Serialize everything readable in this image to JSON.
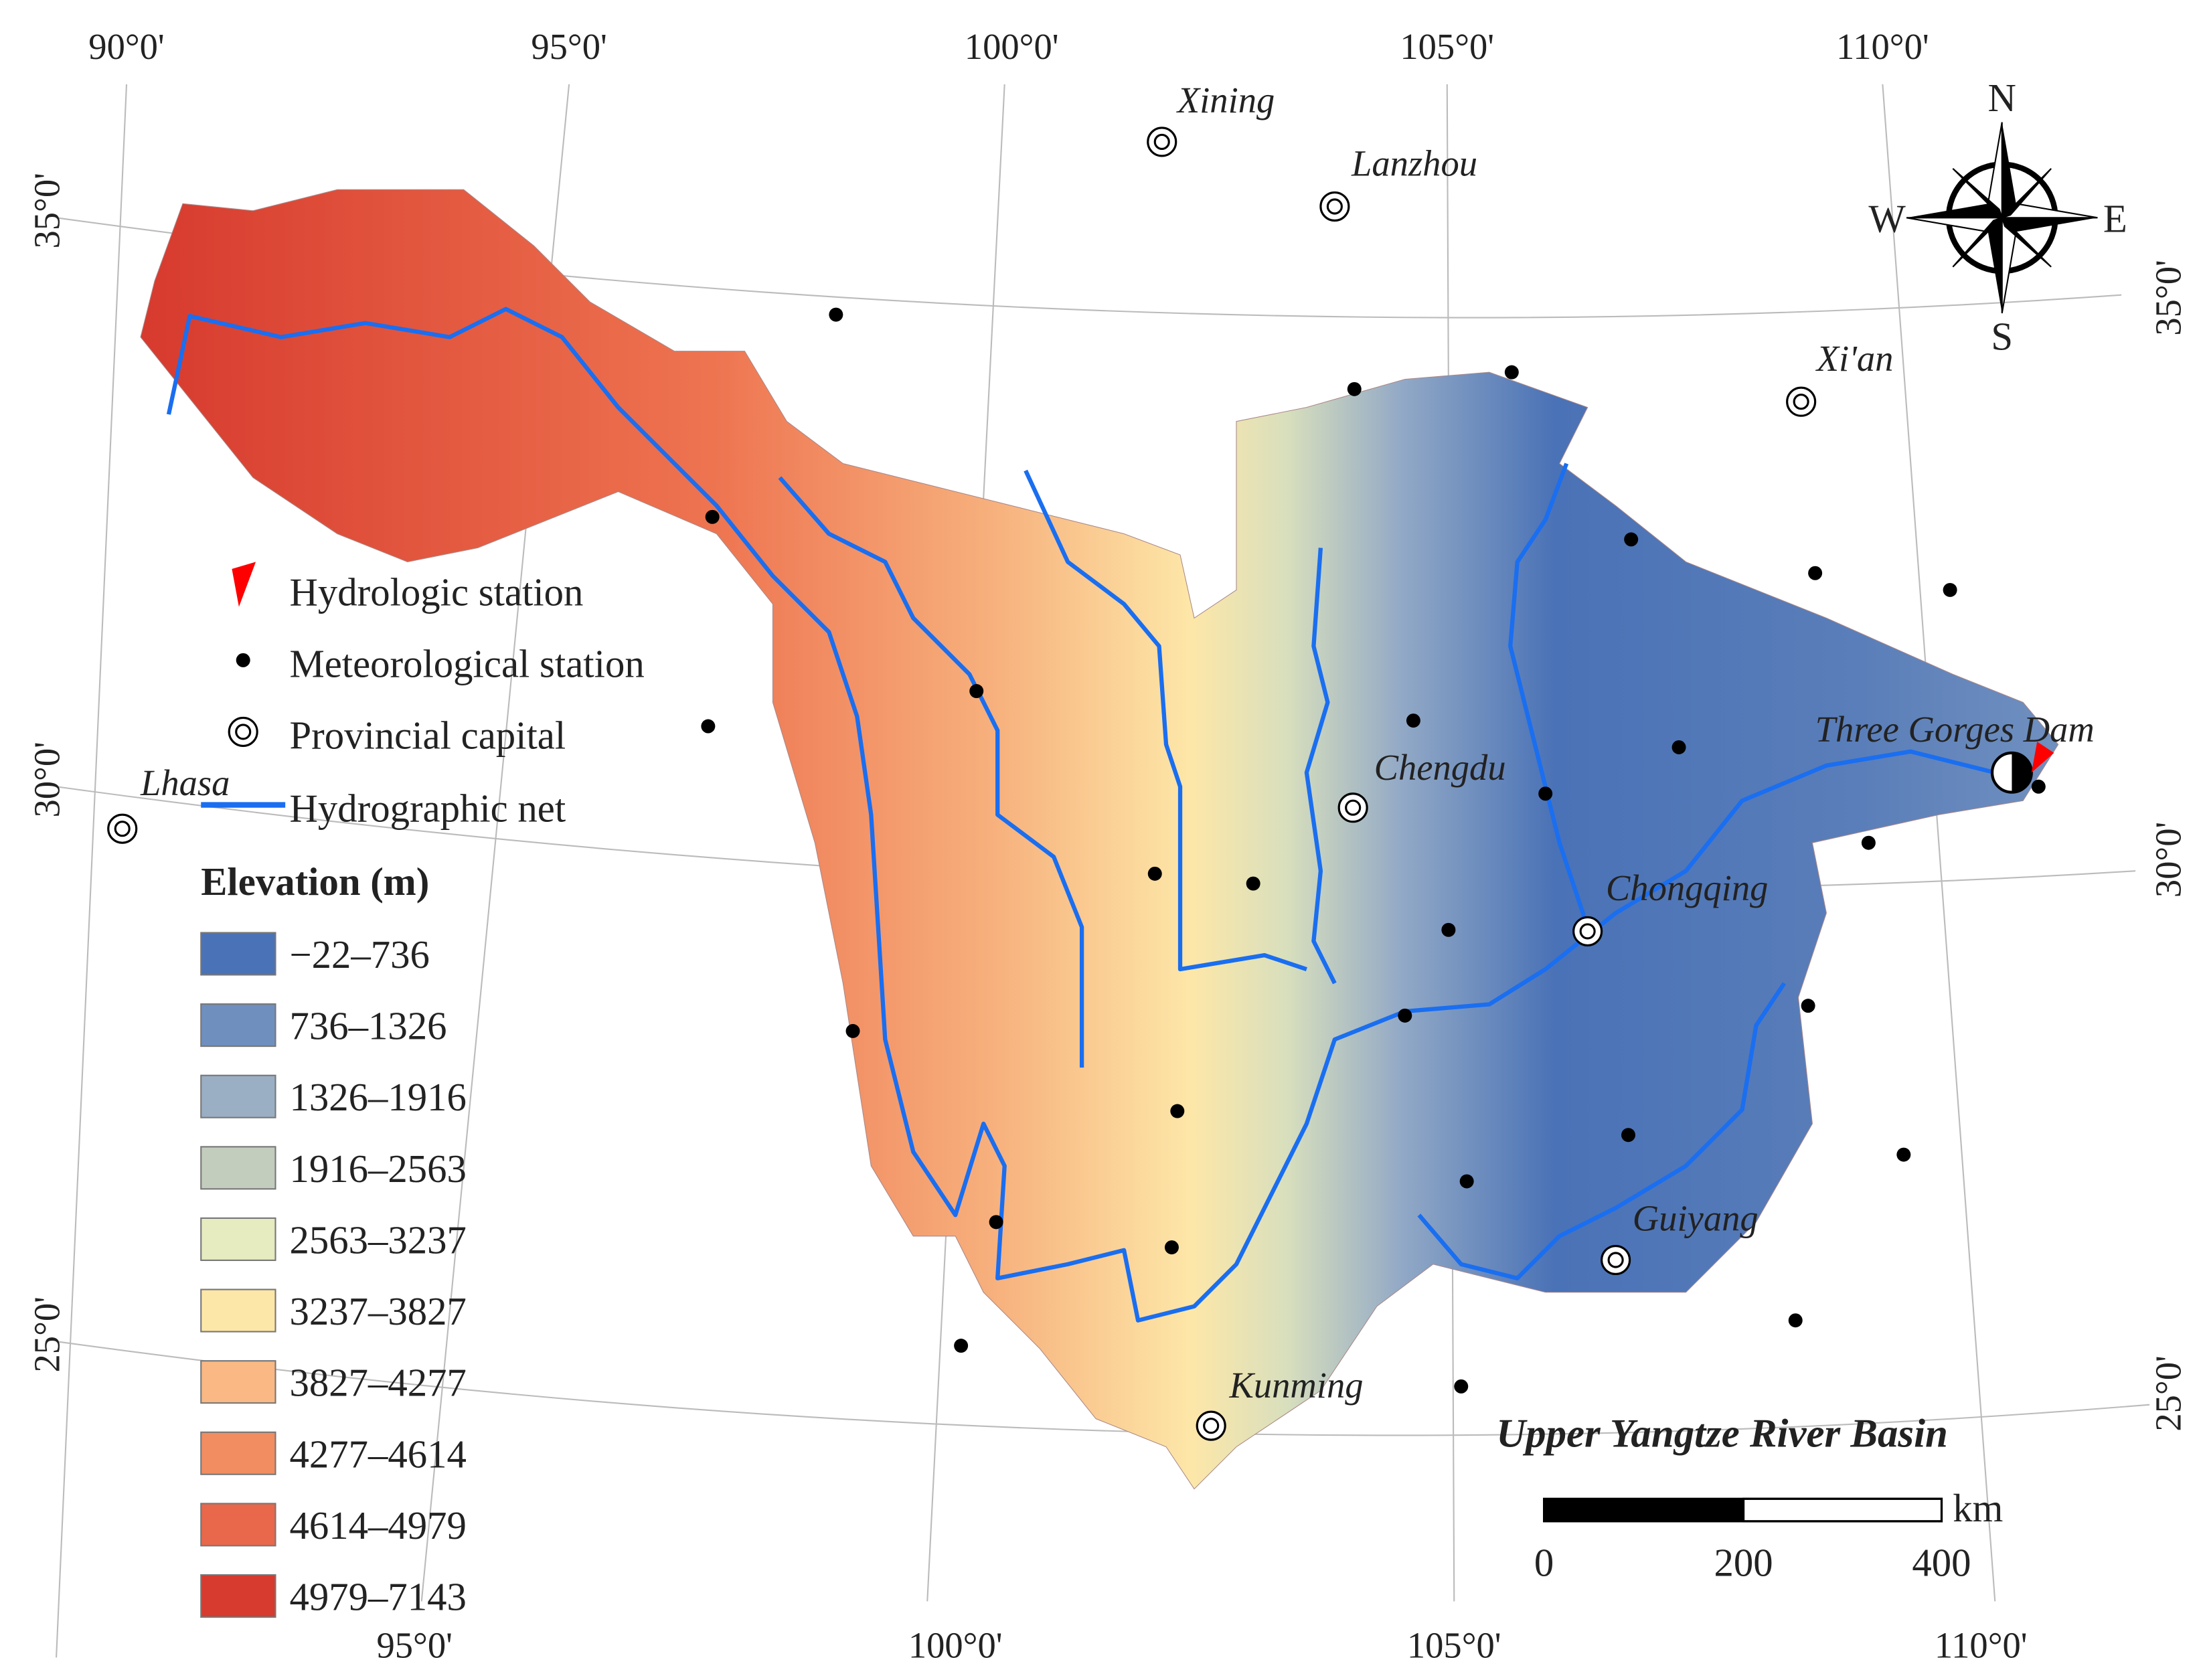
{
  "graticule": {
    "top": [
      "90°0'",
      "95°0'",
      "100°0'",
      "105°0'",
      "110°0'"
    ],
    "bottom": [
      "95°0'",
      "100°0'",
      "105°0'",
      "110°0'"
    ],
    "left": [
      "35°0'",
      "30°0'",
      "25°0'"
    ],
    "right": [
      "35°0'",
      "30°0'",
      "25°0'"
    ]
  },
  "compass": {
    "north": "N",
    "south": "S",
    "east": "E",
    "west": "W"
  },
  "cities": [
    "Xining",
    "Lanzhou",
    "Xi'an",
    "Lhasa",
    "Chengdu",
    "Chongqing",
    "Guiyang",
    "Kunming"
  ],
  "dam": "Three Gorges Dam",
  "legend": {
    "items": [
      "Hydrologic station",
      "Meteorological station",
      "Provincial capital",
      "Hydrographic net"
    ],
    "elevation_title": "Elevation (m)",
    "elevation_classes": [
      {
        "label": "−22–736",
        "color": "#4a72b6"
      },
      {
        "label": "736–1326",
        "color": "#6f8fbf"
      },
      {
        "label": "1326–1916",
        "color": "#9aafc4"
      },
      {
        "label": "1916–2563",
        "color": "#c2cdbd"
      },
      {
        "label": "2563–3237",
        "color": "#e6ebc0"
      },
      {
        "label": "3237–3827",
        "color": "#fde7a8"
      },
      {
        "label": "3827–4277",
        "color": "#f9b884"
      },
      {
        "label": "4277–4614",
        "color": "#f18d60"
      },
      {
        "label": "4614–4979",
        "color": "#e9674a"
      },
      {
        "label": "4979–7143",
        "color": "#d73a2e"
      }
    ]
  },
  "title": "Upper Yangtze River Basin",
  "scale_bar": {
    "ticks": [
      0,
      200,
      400
    ],
    "unit": "km"
  }
}
